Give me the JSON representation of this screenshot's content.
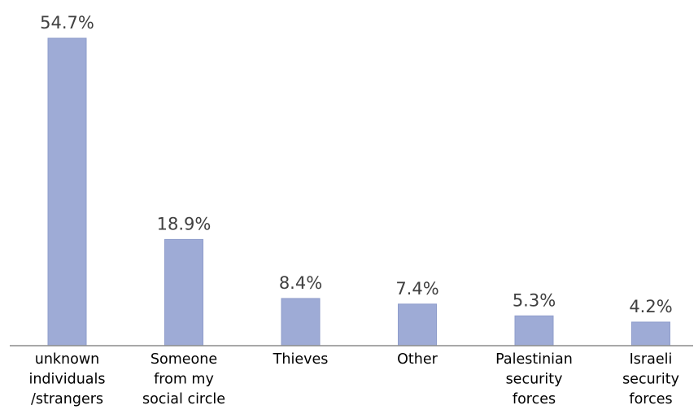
{
  "chart_data": {
    "type": "bar",
    "categories": [
      [
        "unknown",
        "individuals",
        "/strangers"
      ],
      [
        "Someone",
        "from my",
        "social circle"
      ],
      [
        "Thieves"
      ],
      [
        "Other"
      ],
      [
        "Palestinian",
        "security",
        "forces"
      ],
      [
        "Israeli",
        "security",
        "forces"
      ]
    ],
    "values": [
      54.7,
      18.9,
      8.4,
      7.4,
      5.3,
      4.2
    ],
    "value_labels": [
      "54.7%",
      "18.9%",
      "8.4%",
      "7.4%",
      "5.3%",
      "4.2%"
    ],
    "title": "",
    "xlabel": "",
    "ylabel": "",
    "ylim": [
      0,
      54.7
    ],
    "grid": false,
    "legend": "none",
    "bar_color": "#9eabd6",
    "bar_edge_color": "#8f9dcb",
    "axis_color": "#8c8c8c",
    "value_label_color": "#404040",
    "category_label_color": "#000000"
  }
}
